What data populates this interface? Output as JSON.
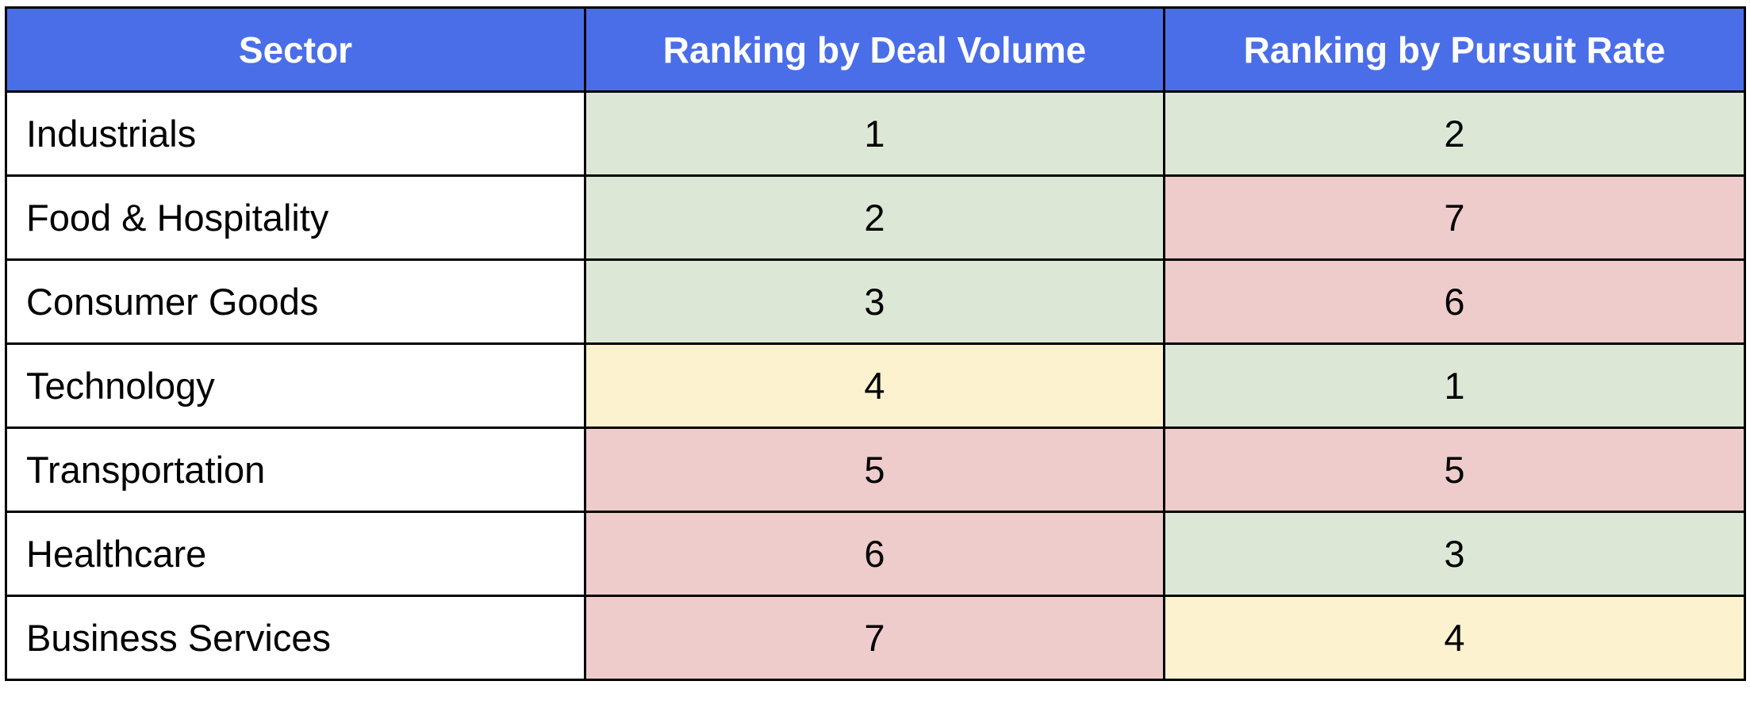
{
  "chart_data": {
    "type": "table",
    "columns": [
      "Sector",
      "Ranking by Deal Volume",
      "Ranking by Pursuit Rate"
    ],
    "rows": [
      {
        "sector": "Industrials",
        "deal_volume": 1,
        "pursuit_rate": 2
      },
      {
        "sector": "Food & Hospitality",
        "deal_volume": 2,
        "pursuit_rate": 7
      },
      {
        "sector": "Consumer Goods",
        "deal_volume": 3,
        "pursuit_rate": 6
      },
      {
        "sector": "Technology",
        "deal_volume": 4,
        "pursuit_rate": 1
      },
      {
        "sector": "Transportation",
        "deal_volume": 5,
        "pursuit_rate": 5
      },
      {
        "sector": "Healthcare",
        "deal_volume": 6,
        "pursuit_rate": 3
      },
      {
        "sector": "Business Services",
        "deal_volume": 7,
        "pursuit_rate": 4
      }
    ]
  },
  "colors": {
    "header_bg": "#4a6ee8",
    "header_text": "#ffffff",
    "rank_top_green": "#dce8d5",
    "rank_mid_yellow": "#fdf2d0",
    "rank_low_red": "#edcccb",
    "border": "#000000"
  }
}
